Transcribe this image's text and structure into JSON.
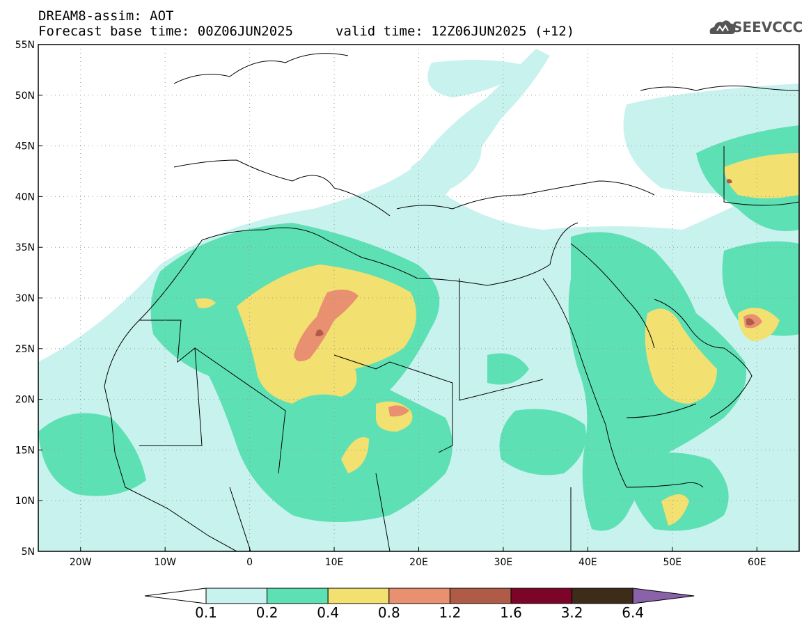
{
  "header": {
    "line1": "DREAM8-assim: AOT",
    "line2_base": "Forecast base time: 00Z06JUN2025",
    "line2_valid": "valid time: 12Z06JUN2025 (+12)",
    "logo_text": "SEEVCCC"
  },
  "axes": {
    "y_labels": [
      "55N",
      "50N",
      "45N",
      "40N",
      "35N",
      "30N",
      "25N",
      "20N",
      "15N",
      "10N",
      "5N"
    ],
    "y_values": [
      55,
      50,
      45,
      40,
      35,
      30,
      25,
      20,
      15,
      10,
      5
    ],
    "x_labels": [
      "20W",
      "10W",
      "0",
      "10E",
      "20E",
      "30E",
      "40E",
      "50E",
      "60E"
    ],
    "x_values": [
      -20,
      -10,
      0,
      10,
      20,
      30,
      40,
      50,
      60
    ],
    "lon_range": [
      -25,
      65
    ],
    "lat_range": [
      5,
      55
    ],
    "grid": "dotted"
  },
  "legend": {
    "levels": [
      "0.1",
      "0.2",
      "0.4",
      "0.8",
      "1.2",
      "1.6",
      "3.2",
      "6.4"
    ],
    "colors": [
      "#c8f2ee",
      "#5ee0b5",
      "#f2e070",
      "#e89070",
      "#b05a48",
      "#7c0428",
      "#3e2c1a",
      "#8a62a8"
    ],
    "under_color": "#ffffff"
  },
  "colors": {
    "c01": "#c8f2ee",
    "c02": "#5ee0b5",
    "c04": "#f2e070",
    "c08": "#e89070",
    "c12": "#b05a48"
  }
}
